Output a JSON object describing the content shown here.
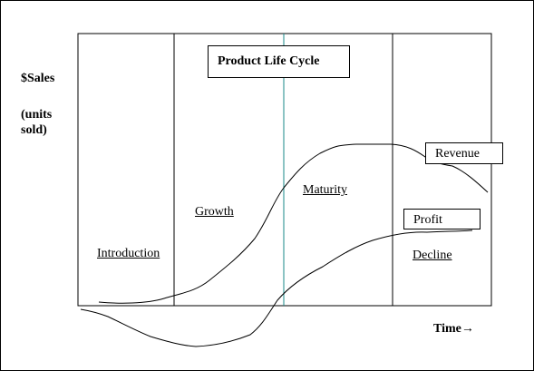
{
  "title": "Product Life Cycle",
  "y_axis": {
    "label": "$Sales",
    "sublabel_line1": "(units",
    "sublabel_line2": "sold)"
  },
  "x_axis": {
    "label": "Time",
    "arrow": "→"
  },
  "stages": [
    "Introduction",
    "Growth",
    "Maturity",
    "Decline"
  ],
  "curves": {
    "revenue_label": "Revenue",
    "profit_label": "Profit"
  },
  "colors": {
    "frame": "#000000",
    "curve": "#000000",
    "peak_marker": "#1a8a8a"
  }
}
